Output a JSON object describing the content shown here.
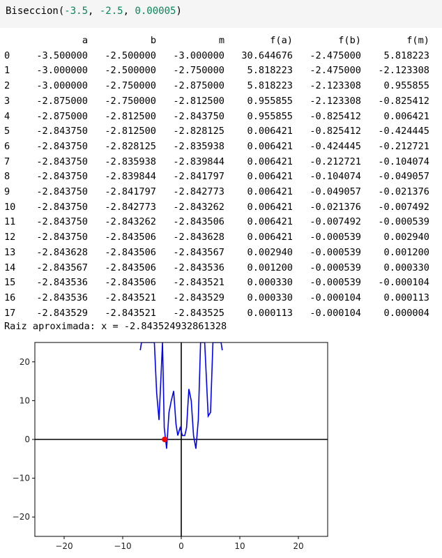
{
  "code": {
    "func": "Biseccion",
    "open": "(",
    "arg1": "-3.5",
    "sep1": ", ",
    "arg2": "-2.5",
    "sep2": ", ",
    "arg3": "0.00005",
    "close": ")"
  },
  "table": {
    "columns": [
      "a",
      "b",
      "m",
      "f(a)",
      "f(b)",
      "f(m)"
    ],
    "rows": [
      [
        "0",
        "-3.500000",
        "-2.500000",
        "-3.000000",
        "30.644676",
        "-2.475000",
        "5.818223"
      ],
      [
        "1",
        "-3.000000",
        "-2.500000",
        "-2.750000",
        "5.818223",
        "-2.475000",
        "-2.123308"
      ],
      [
        "2",
        "-3.000000",
        "-2.750000",
        "-2.875000",
        "5.818223",
        "-2.123308",
        "0.955855"
      ],
      [
        "3",
        "-2.875000",
        "-2.750000",
        "-2.812500",
        "0.955855",
        "-2.123308",
        "-0.825412"
      ],
      [
        "4",
        "-2.875000",
        "-2.812500",
        "-2.843750",
        "0.955855",
        "-0.825412",
        "0.006421"
      ],
      [
        "5",
        "-2.843750",
        "-2.812500",
        "-2.828125",
        "0.006421",
        "-0.825412",
        "-0.424445"
      ],
      [
        "6",
        "-2.843750",
        "-2.828125",
        "-2.835938",
        "0.006421",
        "-0.424445",
        "-0.212721"
      ],
      [
        "7",
        "-2.843750",
        "-2.835938",
        "-2.839844",
        "0.006421",
        "-0.212721",
        "-0.104074"
      ],
      [
        "8",
        "-2.843750",
        "-2.839844",
        "-2.841797",
        "0.006421",
        "-0.104074",
        "-0.049057"
      ],
      [
        "9",
        "-2.843750",
        "-2.841797",
        "-2.842773",
        "0.006421",
        "-0.049057",
        "-0.021376"
      ],
      [
        "10",
        "-2.843750",
        "-2.842773",
        "-2.843262",
        "0.006421",
        "-0.021376",
        "-0.007492"
      ],
      [
        "11",
        "-2.843750",
        "-2.843262",
        "-2.843506",
        "0.006421",
        "-0.007492",
        "-0.000539"
      ],
      [
        "12",
        "-2.843750",
        "-2.843506",
        "-2.843628",
        "0.006421",
        "-0.000539",
        "0.002940"
      ],
      [
        "13",
        "-2.843628",
        "-2.843506",
        "-2.843567",
        "0.002940",
        "-0.000539",
        "0.001200"
      ],
      [
        "14",
        "-2.843567",
        "-2.843506",
        "-2.843536",
        "0.001200",
        "-0.000539",
        "0.000330"
      ],
      [
        "15",
        "-2.843536",
        "-2.843506",
        "-2.843521",
        "0.000330",
        "-0.000539",
        "-0.000104"
      ],
      [
        "16",
        "-2.843536",
        "-2.843521",
        "-2.843529",
        "0.000330",
        "-0.000104",
        "0.000113"
      ],
      [
        "17",
        "-2.843529",
        "-2.843521",
        "-2.843525",
        "0.000113",
        "-0.000104",
        "0.000004"
      ]
    ]
  },
  "result": {
    "text": "Raiz aproximada: x = -2.843524932861328"
  },
  "chart_data": {
    "type": "line",
    "xlim": [
      -25,
      25
    ],
    "ylim": [
      -25,
      25
    ],
    "xticks": [
      "−20",
      "−10",
      "0",
      "10",
      "20"
    ],
    "yticks": [
      "20",
      "10",
      "0",
      "−10",
      "−20"
    ],
    "xtick_values": [
      -20,
      -10,
      0,
      10,
      20
    ],
    "ytick_values": [
      20,
      10,
      0,
      -10,
      -20
    ],
    "series": [
      {
        "color": "#0000ff",
        "x": [
          -7,
          -6.8,
          -5.2,
          -4.6,
          -4.2,
          -3.8,
          -3.2,
          -2.9,
          -2.5,
          -2.1,
          -1.7,
          -1.3,
          -0.9,
          -0.6,
          -0.2,
          0.2,
          0.6,
          0.9,
          1.3,
          1.7,
          2.1,
          2.5,
          2.9,
          3.3,
          3.6,
          4.0,
          4.6,
          5.0,
          5.4,
          6.4,
          6.8,
          7.0
        ],
        "y": [
          23,
          25,
          25,
          25,
          12,
          5,
          25,
          3,
          -2.4,
          7,
          10,
          12.5,
          4,
          1,
          3,
          1,
          1,
          3,
          13,
          10,
          1,
          -2.4,
          5,
          25,
          25,
          25,
          6,
          7,
          25,
          25,
          25,
          23
        ]
      }
    ],
    "point": {
      "x": -2.8435,
      "y": 0,
      "color": "#ff0000"
    },
    "axis_line_color": "#000000"
  }
}
